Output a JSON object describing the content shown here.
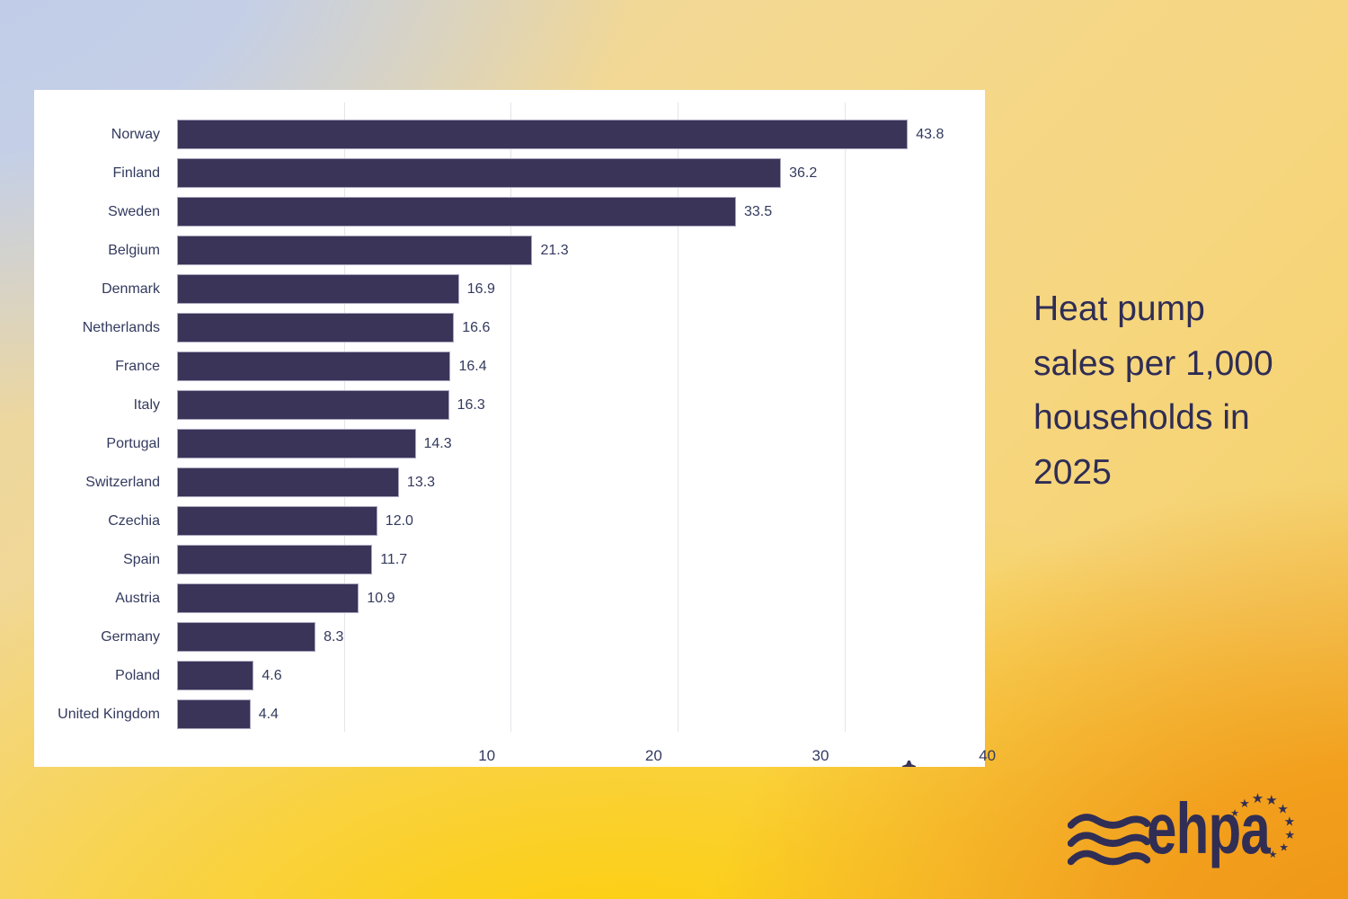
{
  "title": {
    "full": "Heat pump sales per 1,000 households in 2025",
    "lines": [
      "Heat pump",
      "sales per 1,000",
      "households in",
      "2025"
    ]
  },
  "chart_data": {
    "type": "bar",
    "orientation": "horizontal",
    "title": "Heat pump sales per 1,000 households in 2025",
    "xlabel": "",
    "ylabel": "",
    "categories": [
      "Norway",
      "Finland",
      "Sweden",
      "Belgium",
      "Denmark",
      "Netherlands",
      "France",
      "Italy",
      "Portugal",
      "Switzerland",
      "Czechia",
      "Spain",
      "Austria",
      "Germany",
      "Poland",
      "United Kingdom"
    ],
    "values": [
      43.8,
      36.2,
      33.5,
      21.3,
      16.9,
      16.6,
      16.4,
      16.3,
      14.3,
      13.3,
      12.0,
      11.7,
      10.9,
      8.3,
      4.6,
      4.4
    ],
    "value_labels": [
      "43.8",
      "36.2",
      "33.5",
      "21.3",
      "16.9",
      "16.6",
      "16.4",
      "16.3",
      "14.3",
      "13.3",
      "12.0",
      "11.7",
      "10.9",
      "8.3",
      "4.6",
      "4.4"
    ],
    "x_ticks": [
      "10",
      "20",
      "30",
      "40"
    ],
    "x_tick_values": [
      10,
      20,
      30,
      40
    ],
    "xlim": [
      0,
      48.42
    ],
    "grid": "vertical",
    "legend": "none",
    "bar_color": "#3a3459",
    "label_color": "#333a5e",
    "grid_color": "#e4e4ea",
    "panel_bg": "#ffffff"
  },
  "logo": {
    "wordmark": "ehpa",
    "waves_icon": "ehpa-waves-icon",
    "star_glyph": "★",
    "star_count": 9,
    "color": "#312e55"
  },
  "colors": {
    "title": "#2f2d55",
    "bg_corner_top_left": "#bfcce8",
    "bg_corner_top_right": "#f5d88d",
    "bg_bottom_center": "#fdce10",
    "bg_corner_bottom_right": "#f0981f"
  }
}
